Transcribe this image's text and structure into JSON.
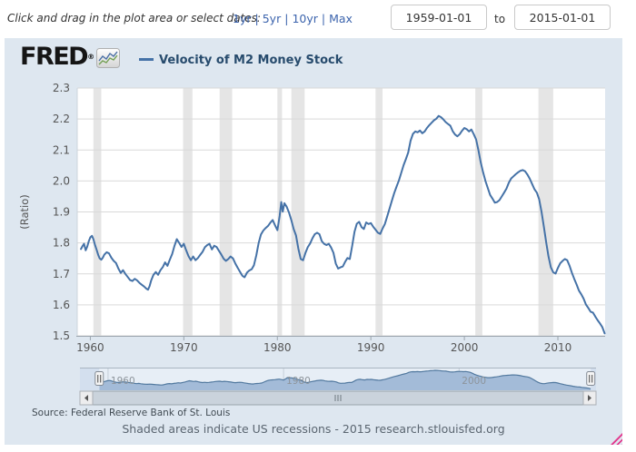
{
  "toolbar": {
    "instruction": "Click and drag in the plot area or select dates:",
    "range_links": [
      "1yr",
      "5yr",
      "10yr",
      "Max"
    ],
    "date_from": "1959-01-01",
    "to_label": "to",
    "date_to": "2015-01-01"
  },
  "header": {
    "logo_text": "FRED",
    "logo_reg": "®",
    "legend_label": "Velocity of M2 Money Stock"
  },
  "footer": {
    "source": "Source: Federal Reserve Bank of St. Louis",
    "note": "Shaded areas indicate US recessions - 2015 research.stlouisfed.org"
  },
  "chart_data": {
    "type": "line",
    "title": "Velocity of M2 Money Stock",
    "xlabel": "",
    "ylabel": "(Ratio)",
    "xlim": [
      1958.6,
      2015.05
    ],
    "ylim": [
      1.5,
      2.3
    ],
    "grid": true,
    "yticks": [
      1.5,
      1.6,
      1.7,
      1.8,
      1.9,
      2.0,
      2.1,
      2.2,
      2.3
    ],
    "xticks": [
      1960,
      1970,
      1980,
      1990,
      2000,
      2010
    ],
    "line_color": "#4572a7",
    "recession_color": "#e5e5e5",
    "recessions": [
      [
        1960.33,
        1961.17
      ],
      [
        1969.92,
        1970.92
      ],
      [
        1973.83,
        1975.17
      ],
      [
        1980.0,
        1980.5
      ],
      [
        1981.5,
        1982.92
      ],
      [
        1990.5,
        1991.25
      ],
      [
        2001.17,
        2001.92
      ],
      [
        2007.92,
        2009.5
      ]
    ],
    "series": [
      {
        "name": "Velocity of M2 Money Stock",
        "points": [
          [
            1959.0,
            1.78
          ],
          [
            1959.17,
            1.79
          ],
          [
            1959.33,
            1.797
          ],
          [
            1959.5,
            1.776
          ],
          [
            1959.67,
            1.788
          ],
          [
            1959.83,
            1.805
          ],
          [
            1960.0,
            1.818
          ],
          [
            1960.17,
            1.823
          ],
          [
            1960.33,
            1.812
          ],
          [
            1960.5,
            1.793
          ],
          [
            1960.67,
            1.778
          ],
          [
            1960.83,
            1.762
          ],
          [
            1961.0,
            1.75
          ],
          [
            1961.17,
            1.746
          ],
          [
            1961.33,
            1.752
          ],
          [
            1961.5,
            1.762
          ],
          [
            1961.75,
            1.77
          ],
          [
            1962.0,
            1.766
          ],
          [
            1962.25,
            1.752
          ],
          [
            1962.5,
            1.742
          ],
          [
            1962.75,
            1.735
          ],
          [
            1963.0,
            1.717
          ],
          [
            1963.25,
            1.703
          ],
          [
            1963.5,
            1.712
          ],
          [
            1963.75,
            1.7
          ],
          [
            1964.0,
            1.69
          ],
          [
            1964.25,
            1.68
          ],
          [
            1964.5,
            1.677
          ],
          [
            1964.75,
            1.684
          ],
          [
            1965.0,
            1.679
          ],
          [
            1965.25,
            1.671
          ],
          [
            1965.5,
            1.665
          ],
          [
            1965.75,
            1.659
          ],
          [
            1966.0,
            1.652
          ],
          [
            1966.17,
            1.649
          ],
          [
            1966.33,
            1.66
          ],
          [
            1966.5,
            1.678
          ],
          [
            1966.75,
            1.697
          ],
          [
            1967.0,
            1.706
          ],
          [
            1967.25,
            1.697
          ],
          [
            1967.5,
            1.712
          ],
          [
            1967.75,
            1.722
          ],
          [
            1968.0,
            1.737
          ],
          [
            1968.25,
            1.726
          ],
          [
            1968.5,
            1.746
          ],
          [
            1968.75,
            1.764
          ],
          [
            1969.0,
            1.79
          ],
          [
            1969.25,
            1.812
          ],
          [
            1969.5,
            1.8
          ],
          [
            1969.75,
            1.787
          ],
          [
            1970.0,
            1.797
          ],
          [
            1970.25,
            1.776
          ],
          [
            1970.5,
            1.757
          ],
          [
            1970.75,
            1.744
          ],
          [
            1971.0,
            1.756
          ],
          [
            1971.25,
            1.744
          ],
          [
            1971.5,
            1.751
          ],
          [
            1971.75,
            1.761
          ],
          [
            1972.0,
            1.771
          ],
          [
            1972.25,
            1.786
          ],
          [
            1972.5,
            1.793
          ],
          [
            1972.75,
            1.797
          ],
          [
            1973.0,
            1.779
          ],
          [
            1973.25,
            1.791
          ],
          [
            1973.5,
            1.787
          ],
          [
            1973.75,
            1.775
          ],
          [
            1974.0,
            1.763
          ],
          [
            1974.25,
            1.749
          ],
          [
            1974.5,
            1.742
          ],
          [
            1974.75,
            1.748
          ],
          [
            1975.0,
            1.756
          ],
          [
            1975.25,
            1.75
          ],
          [
            1975.5,
            1.734
          ],
          [
            1975.75,
            1.72
          ],
          [
            1976.0,
            1.707
          ],
          [
            1976.25,
            1.694
          ],
          [
            1976.5,
            1.689
          ],
          [
            1976.75,
            1.704
          ],
          [
            1977.0,
            1.711
          ],
          [
            1977.25,
            1.715
          ],
          [
            1977.5,
            1.728
          ],
          [
            1977.75,
            1.76
          ],
          [
            1978.0,
            1.8
          ],
          [
            1978.25,
            1.827
          ],
          [
            1978.5,
            1.84
          ],
          [
            1978.75,
            1.848
          ],
          [
            1979.0,
            1.855
          ],
          [
            1979.25,
            1.865
          ],
          [
            1979.5,
            1.874
          ],
          [
            1979.75,
            1.857
          ],
          [
            1980.0,
            1.841
          ],
          [
            1980.25,
            1.887
          ],
          [
            1980.42,
            1.932
          ],
          [
            1980.58,
            1.901
          ],
          [
            1980.75,
            1.928
          ],
          [
            1981.0,
            1.917
          ],
          [
            1981.25,
            1.898
          ],
          [
            1981.5,
            1.873
          ],
          [
            1981.75,
            1.844
          ],
          [
            1982.0,
            1.824
          ],
          [
            1982.25,
            1.781
          ],
          [
            1982.5,
            1.748
          ],
          [
            1982.75,
            1.744
          ],
          [
            1983.0,
            1.767
          ],
          [
            1983.25,
            1.786
          ],
          [
            1983.5,
            1.798
          ],
          [
            1983.75,
            1.815
          ],
          [
            1984.0,
            1.828
          ],
          [
            1984.25,
            1.833
          ],
          [
            1984.5,
            1.828
          ],
          [
            1984.75,
            1.806
          ],
          [
            1985.0,
            1.797
          ],
          [
            1985.25,
            1.793
          ],
          [
            1985.5,
            1.797
          ],
          [
            1985.75,
            1.785
          ],
          [
            1986.0,
            1.768
          ],
          [
            1986.25,
            1.733
          ],
          [
            1986.5,
            1.717
          ],
          [
            1986.75,
            1.721
          ],
          [
            1987.0,
            1.724
          ],
          [
            1987.25,
            1.739
          ],
          [
            1987.5,
            1.751
          ],
          [
            1987.75,
            1.748
          ],
          [
            1988.0,
            1.79
          ],
          [
            1988.25,
            1.836
          ],
          [
            1988.5,
            1.862
          ],
          [
            1988.75,
            1.868
          ],
          [
            1989.0,
            1.851
          ],
          [
            1989.25,
            1.845
          ],
          [
            1989.5,
            1.866
          ],
          [
            1989.75,
            1.861
          ],
          [
            1990.0,
            1.864
          ],
          [
            1990.25,
            1.852
          ],
          [
            1990.5,
            1.843
          ],
          [
            1990.75,
            1.833
          ],
          [
            1991.0,
            1.829
          ],
          [
            1991.25,
            1.846
          ],
          [
            1991.5,
            1.861
          ],
          [
            1991.75,
            1.886
          ],
          [
            1992.0,
            1.911
          ],
          [
            1992.25,
            1.936
          ],
          [
            1992.5,
            1.961
          ],
          [
            1992.75,
            1.982
          ],
          [
            1993.0,
            2.002
          ],
          [
            1993.25,
            2.026
          ],
          [
            1993.5,
            2.051
          ],
          [
            1993.75,
            2.071
          ],
          [
            1994.0,
            2.092
          ],
          [
            1994.25,
            2.13
          ],
          [
            1994.5,
            2.152
          ],
          [
            1994.75,
            2.16
          ],
          [
            1995.0,
            2.157
          ],
          [
            1995.25,
            2.163
          ],
          [
            1995.5,
            2.154
          ],
          [
            1995.75,
            2.16
          ],
          [
            1996.0,
            2.171
          ],
          [
            1996.25,
            2.18
          ],
          [
            1996.5,
            2.188
          ],
          [
            1996.75,
            2.196
          ],
          [
            1997.0,
            2.201
          ],
          [
            1997.25,
            2.21
          ],
          [
            1997.5,
            2.206
          ],
          [
            1997.75,
            2.199
          ],
          [
            1998.0,
            2.19
          ],
          [
            1998.25,
            2.184
          ],
          [
            1998.5,
            2.178
          ],
          [
            1998.75,
            2.161
          ],
          [
            1999.0,
            2.15
          ],
          [
            1999.25,
            2.144
          ],
          [
            1999.5,
            2.151
          ],
          [
            1999.75,
            2.162
          ],
          [
            2000.0,
            2.171
          ],
          [
            2000.25,
            2.167
          ],
          [
            2000.5,
            2.16
          ],
          [
            2000.75,
            2.166
          ],
          [
            2001.0,
            2.151
          ],
          [
            2001.25,
            2.134
          ],
          [
            2001.5,
            2.1
          ],
          [
            2001.75,
            2.06
          ],
          [
            2002.0,
            2.028
          ],
          [
            2002.25,
            2.0
          ],
          [
            2002.5,
            1.978
          ],
          [
            2002.75,
            1.955
          ],
          [
            2003.0,
            1.943
          ],
          [
            2003.25,
            1.93
          ],
          [
            2003.5,
            1.932
          ],
          [
            2003.75,
            1.938
          ],
          [
            2004.0,
            1.95
          ],
          [
            2004.25,
            1.962
          ],
          [
            2004.5,
            1.975
          ],
          [
            2004.75,
            1.994
          ],
          [
            2005.0,
            2.008
          ],
          [
            2005.25,
            2.015
          ],
          [
            2005.5,
            2.022
          ],
          [
            2005.75,
            2.028
          ],
          [
            2006.0,
            2.033
          ],
          [
            2006.25,
            2.035
          ],
          [
            2006.5,
            2.031
          ],
          [
            2006.75,
            2.02
          ],
          [
            2007.0,
            2.007
          ],
          [
            2007.25,
            1.99
          ],
          [
            2007.5,
            1.973
          ],
          [
            2007.75,
            1.962
          ],
          [
            2008.0,
            1.941
          ],
          [
            2008.25,
            1.901
          ],
          [
            2008.5,
            1.852
          ],
          [
            2008.75,
            1.801
          ],
          [
            2009.0,
            1.756
          ],
          [
            2009.25,
            1.721
          ],
          [
            2009.5,
            1.705
          ],
          [
            2009.75,
            1.701
          ],
          [
            2010.0,
            1.719
          ],
          [
            2010.25,
            1.734
          ],
          [
            2010.5,
            1.742
          ],
          [
            2010.75,
            1.748
          ],
          [
            2011.0,
            1.744
          ],
          [
            2011.25,
            1.726
          ],
          [
            2011.5,
            1.703
          ],
          [
            2011.75,
            1.684
          ],
          [
            2012.0,
            1.666
          ],
          [
            2012.25,
            1.646
          ],
          [
            2012.5,
            1.634
          ],
          [
            2012.75,
            1.62
          ],
          [
            2013.0,
            1.601
          ],
          [
            2013.25,
            1.59
          ],
          [
            2013.5,
            1.578
          ],
          [
            2013.75,
            1.575
          ],
          [
            2014.0,
            1.562
          ],
          [
            2014.25,
            1.55
          ],
          [
            2014.5,
            1.54
          ],
          [
            2014.75,
            1.528
          ],
          [
            2015.0,
            1.508
          ]
        ]
      }
    ],
    "legend_position": "top",
    "navigator": {
      "xlim": [
        1956.8,
        2015.6
      ],
      "selected": [
        1959.0,
        2015.0
      ],
      "label_years": [
        1960,
        1980,
        2000
      ]
    }
  }
}
